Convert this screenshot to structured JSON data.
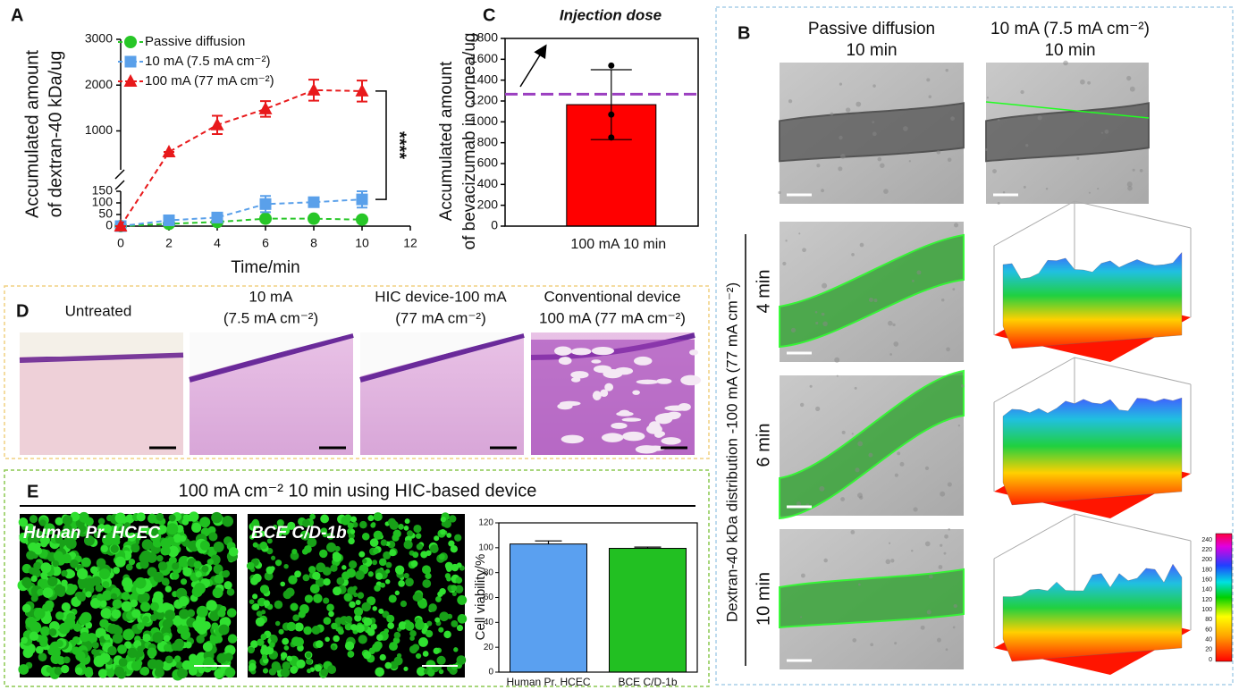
{
  "panel_labels": [
    "A",
    "B",
    "C",
    "D",
    "E"
  ],
  "chart_data": [
    {
      "type": "line",
      "x_label": "Time/min",
      "y_label": [
        "Accumulated amount",
        "of dextran-40 kDa/ug"
      ],
      "x": [
        0,
        2,
        4,
        6,
        8,
        10
      ],
      "series": [
        {
          "name": "Passive diffusion",
          "color": "#27c627",
          "marker": "circle",
          "values": [
            0,
            10,
            18,
            32,
            32,
            28
          ],
          "errors": [
            0,
            3,
            3,
            3,
            3,
            3
          ]
        },
        {
          "name": "10 mA (7.5 mA cm⁻²)",
          "color": "#5aa0ea",
          "marker": "square",
          "values": [
            0,
            25,
            37,
            95,
            103,
            115
          ],
          "errors": [
            0,
            5,
            5,
            35,
            10,
            35
          ]
        },
        {
          "name": "100 mA (77 mA cm⁻²)",
          "color": "#e8191b",
          "marker": "triangle",
          "values": [
            0,
            540,
            1130,
            1480,
            1890,
            1870
          ],
          "errors": [
            0,
            0,
            200,
            170,
            230,
            230
          ]
        }
      ],
      "xlim": [
        0,
        12
      ],
      "xticks": [
        0,
        2,
        4,
        6,
        8,
        10,
        12
      ],
      "ylim_lower": [
        0,
        150
      ],
      "ylim_upper": [
        150,
        3000
      ],
      "yticks": [
        0,
        50,
        100,
        150,
        1000,
        2000,
        3000
      ],
      "significance": "****"
    },
    {
      "type": "bar",
      "title": "Injection dose",
      "y_label": [
        "Accumulated amount",
        "of bevacizumab in cornea/ug"
      ],
      "categories": [
        "100 mA 10 min"
      ],
      "values": [
        1165
      ],
      "errors": [
        335
      ],
      "points": [
        1540,
        1070,
        850
      ],
      "color": "#ff0000",
      "reference_line": {
        "value": 1265,
        "color": "#9b3fc0"
      },
      "ylim": [
        0,
        1800
      ],
      "yticks": [
        0,
        200,
        400,
        600,
        800,
        1000,
        1200,
        1400,
        1600,
        1800
      ]
    },
    {
      "type": "bar",
      "y_label": "Cell viability/%",
      "categories": [
        "Human Pr. HCEC",
        "BCE C/D-1b"
      ],
      "values": [
        103,
        99.5
      ],
      "errors": [
        2.5,
        1
      ],
      "colors": [
        "#5aa0f0",
        "#22c022"
      ],
      "ylim": [
        0,
        120
      ],
      "yticks": [
        0,
        20,
        40,
        60,
        80,
        100,
        120
      ]
    }
  ],
  "panel_b": {
    "column_headers": [
      [
        "Passive diffusion",
        "10 min"
      ],
      [
        "10 mA (7.5 mA cm⁻²)",
        "10 min"
      ]
    ],
    "row_labels": [
      "4 min",
      "6 min",
      "10 min"
    ],
    "side_label": "Dextran-40 kDa distribution -100 mA (77 mA cm⁻²)",
    "colorbar_ticks": [
      0,
      20,
      40,
      60,
      80,
      100,
      120,
      140,
      160,
      180,
      200,
      220,
      240
    ]
  },
  "panel_d": {
    "titles": [
      [
        "Untreated"
      ],
      [
        "10 mA",
        "(7.5 mA cm⁻²)"
      ],
      [
        "HIC device-100 mA",
        "(77 mA cm⁻²)"
      ],
      [
        "Conventional device",
        "100 mA (77 mA cm⁻²)"
      ]
    ]
  },
  "panel_e": {
    "title": "100 mA cm⁻² 10 min using HIC-based device",
    "image_labels": [
      "Human Pr. HCEC",
      "BCE C/D-1b"
    ]
  }
}
